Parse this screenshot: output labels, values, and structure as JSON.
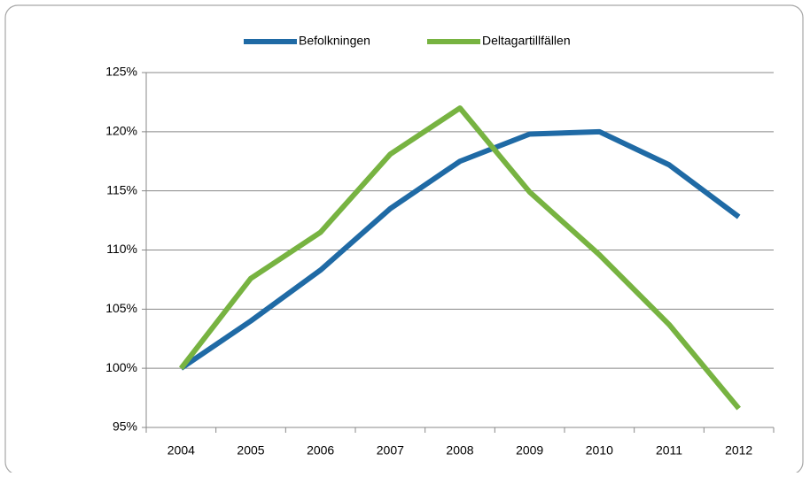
{
  "chart_data": {
    "type": "line",
    "categories": [
      "2004",
      "2005",
      "2006",
      "2007",
      "2008",
      "2009",
      "2010",
      "2011",
      "2012"
    ],
    "series": [
      {
        "name": "Befolkningen",
        "color": "#1f6aa5",
        "values": [
          100,
          104,
          108.3,
          113.5,
          117.5,
          119.8,
          120,
          117.2,
          112.8
        ]
      },
      {
        "name": "Deltagartillfällen",
        "color": "#77b341",
        "values": [
          100,
          107.6,
          111.5,
          118.1,
          122,
          114.9,
          109.6,
          103.7,
          96.6
        ]
      }
    ],
    "ylim": [
      95,
      125
    ],
    "yticks": [
      {
        "value": 95,
        "label": "95%"
      },
      {
        "value": 100,
        "label": "100%"
      },
      {
        "value": 105,
        "label": "105%"
      },
      {
        "value": 110,
        "label": "110%"
      },
      {
        "value": 115,
        "label": "115%"
      },
      {
        "value": 120,
        "label": "120%"
      },
      {
        "value": 125,
        "label": "125%"
      }
    ],
    "grid": true,
    "legend": "top"
  }
}
